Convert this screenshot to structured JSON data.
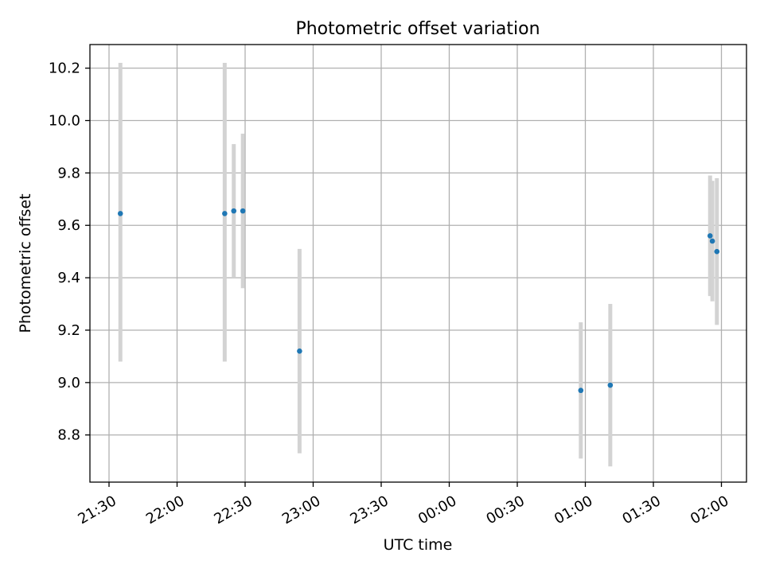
{
  "chart_data": {
    "type": "scatter",
    "title": "Photometric offset variation",
    "xlabel": "UTC time",
    "ylabel": "Photometric offset",
    "x_tick_labels": [
      "21:30",
      "22:00",
      "22:30",
      "23:00",
      "23:30",
      "00:00",
      "00:30",
      "01:00",
      "01:30",
      "02:00"
    ],
    "y_ticks": [
      8.8,
      9.0,
      9.2,
      9.4,
      9.6,
      9.8,
      10.0,
      10.2
    ],
    "ylim": [
      8.62,
      10.29
    ],
    "grid": true,
    "colors": {
      "points": "#1f77b4",
      "errorbars": "#d3d3d3",
      "grid": "#b0b0b0"
    },
    "points": [
      {
        "time": "21:35",
        "value": 9.645,
        "lower": 9.08,
        "upper": 10.22
      },
      {
        "time": "22:21",
        "value": 9.645,
        "lower": 9.08,
        "upper": 10.22
      },
      {
        "time": "22:25",
        "value": 9.655,
        "lower": 9.4,
        "upper": 9.91
      },
      {
        "time": "22:29",
        "value": 9.655,
        "lower": 9.36,
        "upper": 9.95
      },
      {
        "time": "22:54",
        "value": 9.12,
        "lower": 8.73,
        "upper": 9.51
      },
      {
        "time": "00:58",
        "value": 8.97,
        "lower": 8.71,
        "upper": 9.23
      },
      {
        "time": "01:11",
        "value": 8.99,
        "lower": 8.68,
        "upper": 9.3
      },
      {
        "time": "01:55",
        "value": 9.56,
        "lower": 9.33,
        "upper": 9.79
      },
      {
        "time": "01:56",
        "value": 9.54,
        "lower": 9.31,
        "upper": 9.77
      },
      {
        "time": "01:58",
        "value": 9.5,
        "lower": 9.22,
        "upper": 9.78
      }
    ]
  }
}
